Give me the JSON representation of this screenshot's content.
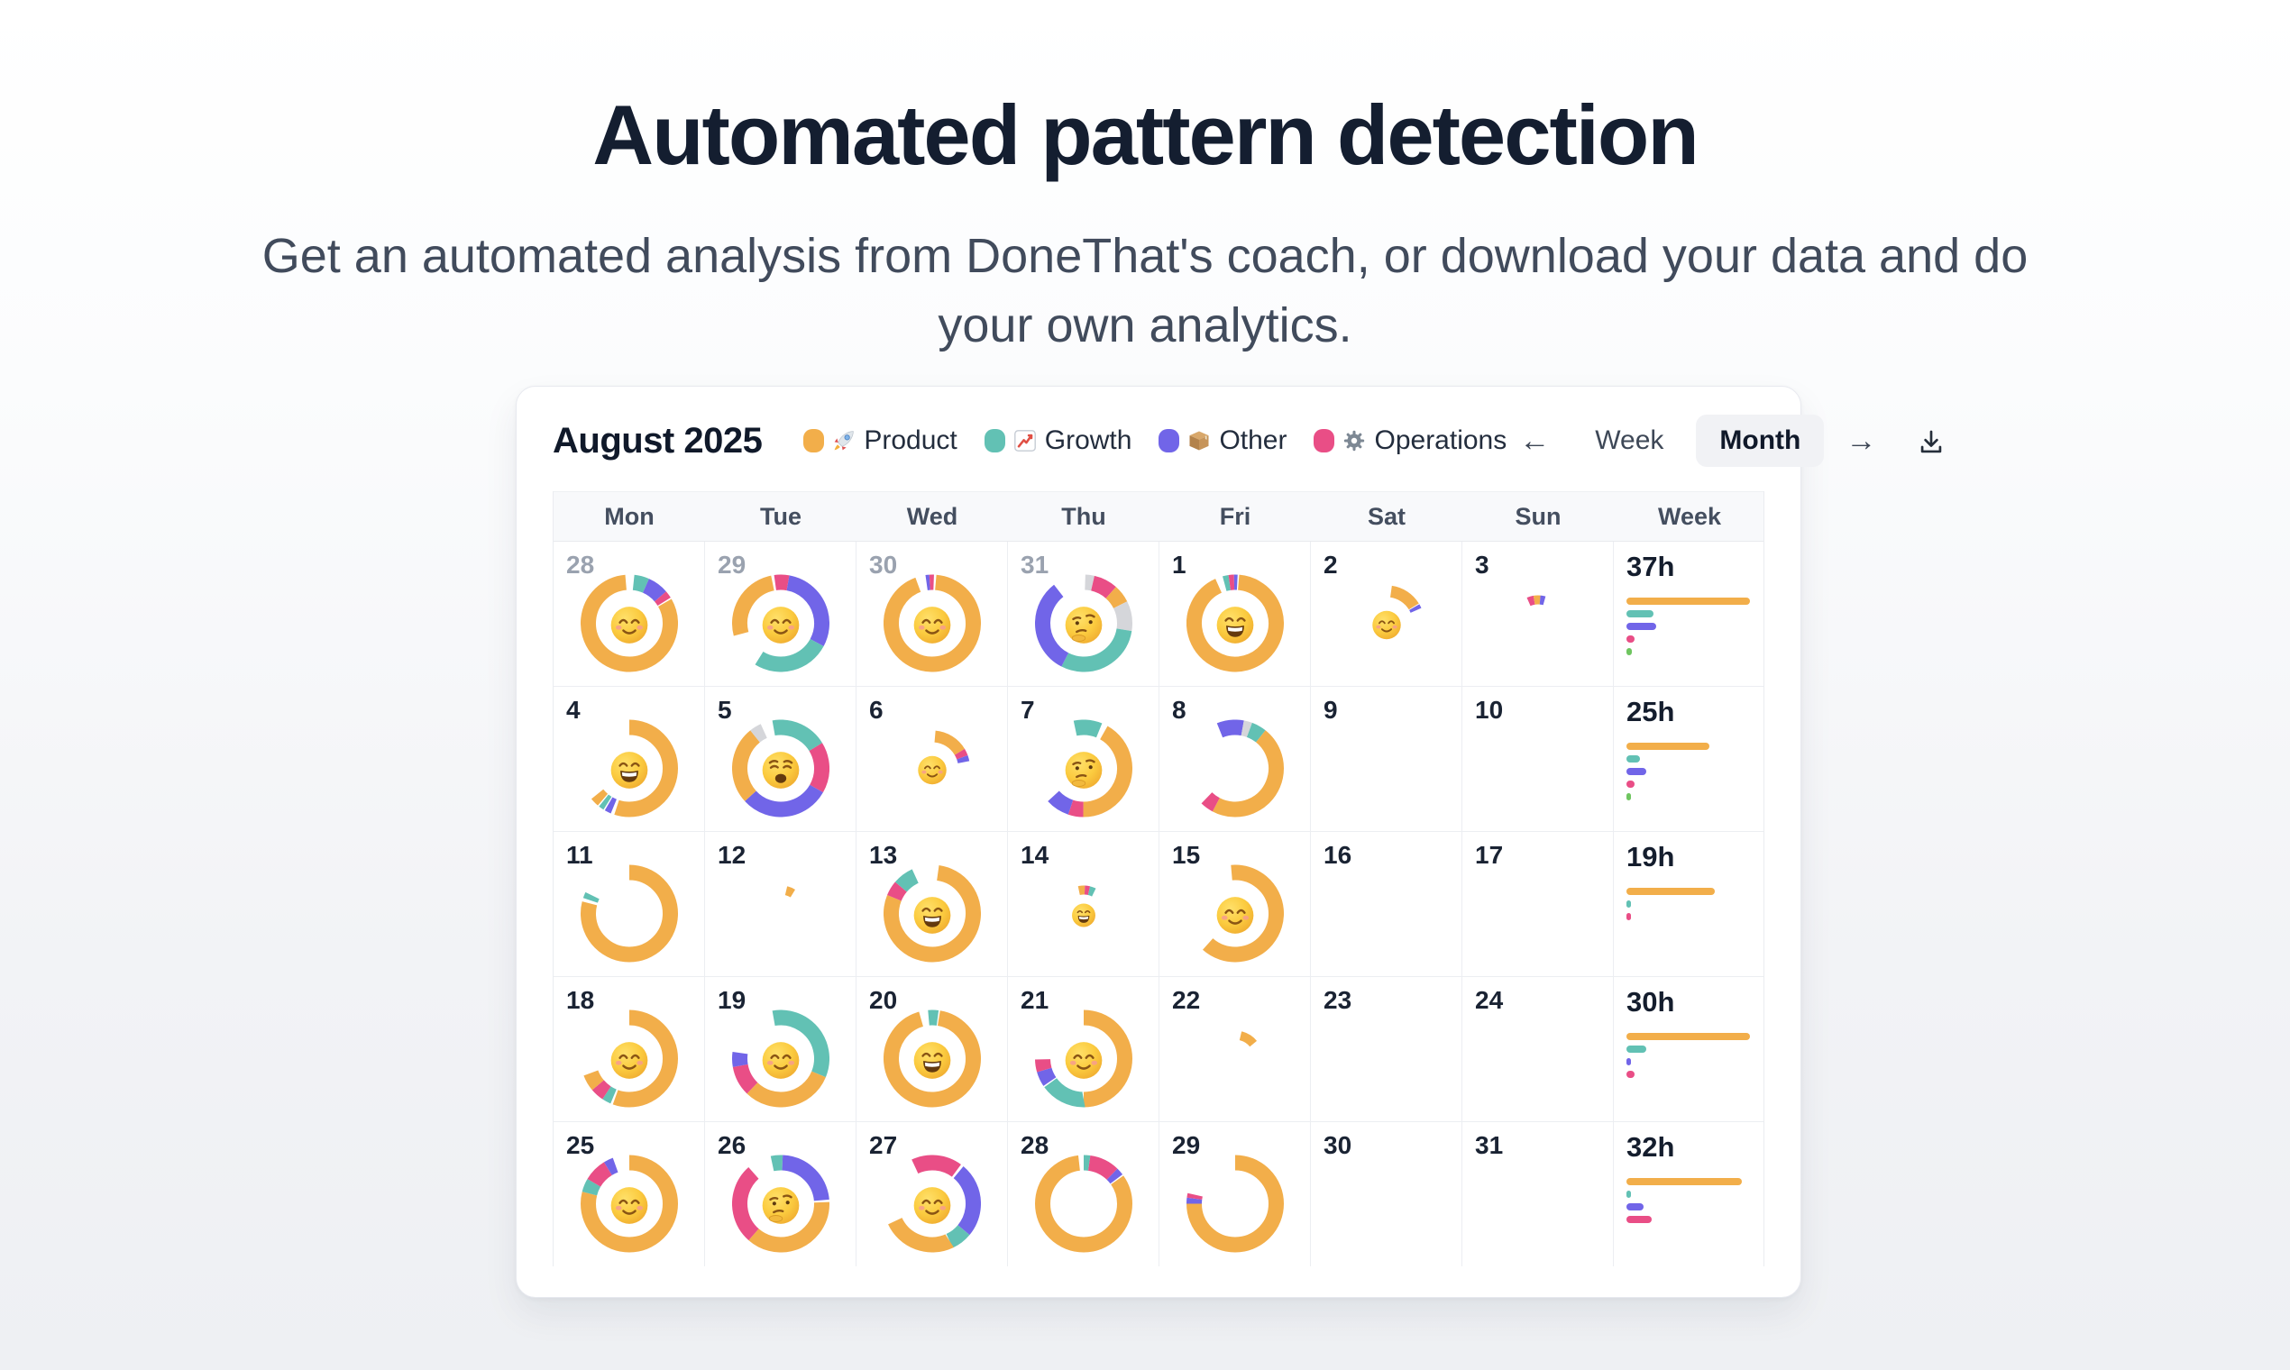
{
  "hero": {
    "title": "Automated pattern detection",
    "subtitle": "Get an automated analysis from DoneThat's coach, or download your data and do your own analytics."
  },
  "calendar": {
    "month_title": "August 2025",
    "legend": [
      {
        "label": "Product",
        "color": "#F2AE4A",
        "icon": "rocket-icon"
      },
      {
        "label": "Growth",
        "color": "#62C1B4",
        "icon": "chart-increasing-icon"
      },
      {
        "label": "Other",
        "color": "#7165E8",
        "icon": "package-icon"
      },
      {
        "label": "Operations",
        "color": "#E94E86",
        "icon": "gear-icon"
      }
    ],
    "controls": {
      "prev_symbol": "←",
      "next_symbol": "→",
      "week_label": "Week",
      "month_label": "Month",
      "active_view": "Month",
      "download_icon": "download-icon"
    },
    "day_headers": [
      "Mon",
      "Tue",
      "Wed",
      "Thu",
      "Fri",
      "Sat",
      "Sun",
      "Week"
    ],
    "colors": {
      "orange": "#F2AE4A",
      "teal": "#62C1B4",
      "purple": "#7165E8",
      "pink": "#E94E86",
      "gray": "#D5D6DA",
      "green": "#6FC560"
    },
    "weeks": [
      {
        "days": [
          {
            "n": "28",
            "dim": true,
            "face": "relaxed",
            "donut": {
              "start": 6,
              "size": "L",
              "segs": [
                [
                  "teal",
                  0.05
                ],
                [
                  "purple",
                  0.07
                ],
                [
                  "pink",
                  0.025
                ],
                [
                  "orange",
                  0.82,
                  0.005
                ]
              ]
            }
          },
          {
            "n": "29",
            "dim": true,
            "face": "relaxed",
            "donut": {
              "start": 255,
              "size": "L",
              "segs": [
                [
                  "orange",
                  0.26
                ],
                [
                  "pink",
                  0.05,
                  0.01
                ],
                [
                  "purple",
                  0.3
                ],
                [
                  "teal",
                  0.26
                ]
              ]
            }
          },
          {
            "n": "30",
            "dim": true,
            "face": "relaxed",
            "donut": {
              "start": 352,
              "size": "L",
              "segs": [
                [
                  "purple",
                  0.013
                ],
                [
                  "pink",
                  0.015
                ],
                [
                  "orange",
                  0.93,
                  0.008
                ]
              ]
            }
          },
          {
            "n": "31",
            "dim": true,
            "face": "thinking",
            "donut": {
              "start": 2,
              "size": "L",
              "segs": [
                [
                  "gray",
                  0.03
                ],
                [
                  "pink",
                  0.08
                ],
                [
                  "orange",
                  0.06
                ],
                [
                  "gray",
                  0.1
                ],
                [
                  "teal",
                  0.3
                ],
                [
                  "purple",
                  0.32
                ]
              ]
            }
          },
          {
            "n": "1",
            "face": "grin",
            "donut": {
              "start": 345,
              "size": "L",
              "segs": [
                [
                  "teal",
                  0.02
                ],
                [
                  "pink",
                  0.018
                ],
                [
                  "purple",
                  0.012
                ],
                [
                  "orange",
                  0.92,
                  0.005
                ]
              ]
            }
          },
          {
            "n": "2",
            "face": "relaxed",
            "donut": {
              "start": 8,
              "size": "M",
              "segs": [
                [
                  "orange",
                  0.14
                ],
                [
                  "purple",
                  0.018,
                  0.004
                ]
              ]
            }
          },
          {
            "n": "3",
            "donut": {
              "start": 338,
              "size": "S",
              "segs": [
                [
                  "pink",
                  0.035
                ],
                [
                  "orange",
                  0.04
                ],
                [
                  "purple",
                  0.03
                ]
              ]
            }
          }
        ],
        "summary": {
          "label": "37h",
          "bars": [
            [
              "orange",
              137
            ],
            [
              "teal",
              30
            ],
            [
              "purple",
              33
            ],
            [
              "pink",
              9
            ],
            [
              "green",
              6
            ]
          ]
        }
      },
      {
        "days": [
          {
            "n": "4",
            "face": "grin",
            "donut": {
              "start": 0,
              "size": "L",
              "segs": [
                [
                  "orange",
                  0.55
                ],
                [
                  "purple",
                  0.022,
                  0.012
                ],
                [
                  "teal",
                  0.018,
                  0.005
                ],
                [
                  "orange",
                  0.03,
                  0.005
                ]
              ]
            }
          },
          {
            "n": "5",
            "face": "weary",
            "donut": {
              "start": 350,
              "size": "L",
              "segs": [
                [
                  "teal",
                  0.19
                ],
                [
                  "pink",
                  0.17
                ],
                [
                  "purple",
                  0.3
                ],
                [
                  "orange",
                  0.26
                ],
                [
                  "gray",
                  0.04
                ]
              ]
            }
          },
          {
            "n": "6",
            "face": "relaxed",
            "donut": {
              "start": 5,
              "size": "M",
              "segs": [
                [
                  "orange",
                  0.15
                ],
                [
                  "pink",
                  0.03
                ],
                [
                  "purple",
                  0.025
                ]
              ]
            }
          },
          {
            "n": "7",
            "face": "thinking",
            "donut": {
              "start": 348,
              "size": "L",
              "segs": [
                [
                  "teal",
                  0.095
                ],
                [
                  "orange",
                  0.42,
                  0.02
                ],
                [
                  "pink",
                  0.05
                ],
                [
                  "purple",
                  0.08
                ]
              ]
            }
          },
          {
            "n": "8",
            "donut": {
              "start": 338,
              "size": "L",
              "segs": [
                [
                  "purple",
                  0.09
                ],
                [
                  "gray",
                  0.028
                ],
                [
                  "teal",
                  0.05
                ],
                [
                  "orange",
                  0.47
                ],
                [
                  "pink",
                  0.045
                ]
              ]
            }
          },
          {
            "n": "9"
          },
          {
            "n": "10"
          }
        ],
        "summary": {
          "label": "25h",
          "bars": [
            [
              "orange",
              92
            ],
            [
              "teal",
              15
            ],
            [
              "purple",
              22
            ],
            [
              "pink",
              9
            ],
            [
              "green",
              5
            ]
          ]
        }
      },
      {
        "days": [
          {
            "n": "11",
            "donut": {
              "start": 0,
              "size": "L",
              "segs": [
                [
                  "orange",
                  0.79
                ],
                [
                  "teal",
                  0.02,
                  0.012
                ]
              ]
            }
          },
          {
            "n": "12",
            "donut": {
              "start": 15,
              "size": "S",
              "segs": [
                [
                  "orange",
                  0.045
                ]
              ]
            }
          },
          {
            "n": "13",
            "face": "grin",
            "donut": {
              "start": 8,
              "size": "L",
              "segs": [
                [
                  "orange",
                  0.79
                ],
                [
                  "pink",
                  0.05
                ],
                [
                  "teal",
                  0.07
                ]
              ]
            }
          },
          {
            "n": "14",
            "face": "grin",
            "donut": {
              "start": 350,
              "size": "S",
              "segs": [
                [
                  "orange",
                  0.035
                ],
                [
                  "pink",
                  0.03
                ],
                [
                  "teal",
                  0.035
                ]
              ]
            }
          },
          {
            "n": "15",
            "face": "relaxed",
            "donut": {
              "start": 355,
              "size": "L",
              "segs": [
                [
                  "orange",
                  0.63
                ]
              ]
            }
          },
          {
            "n": "16"
          },
          {
            "n": "17"
          }
        ],
        "summary": {
          "label": "19h",
          "bars": [
            [
              "orange",
              98
            ],
            [
              "teal",
              5
            ],
            [
              "pink",
              5
            ]
          ]
        }
      },
      {
        "days": [
          {
            "n": "18",
            "face": "relaxed",
            "donut": {
              "start": 0,
              "size": "L",
              "segs": [
                [
                  "orange",
                  0.555
                ],
                [
                  "teal",
                  0.03,
                  0.008
                ],
                [
                  "pink",
                  0.045
                ],
                [
                  "orange",
                  0.055
                ]
              ]
            }
          },
          {
            "n": "19",
            "face": "relaxed",
            "donut": {
              "start": 350,
              "size": "L",
              "segs": [
                [
                  "teal",
                  0.34
                ],
                [
                  "orange",
                  0.31
                ],
                [
                  "pink",
                  0.1
                ],
                [
                  "purple",
                  0.05
                ]
              ]
            }
          },
          {
            "n": "20",
            "face": "grin",
            "donut": {
              "start": 355,
              "size": "L",
              "segs": [
                [
                  "teal",
                  0.035
                ],
                [
                  "orange",
                  0.93,
                  0.005
                ]
              ]
            }
          },
          {
            "n": "21",
            "face": "relaxed",
            "donut": {
              "start": 0,
              "size": "L",
              "segs": [
                [
                  "orange",
                  0.5
                ],
                [
                  "teal",
                  0.15
                ],
                [
                  "purple",
                  0.05,
                  0.005
                ],
                [
                  "pink",
                  0.042
                ]
              ]
            }
          },
          {
            "n": "22",
            "donut": {
              "start": 15,
              "size": "S",
              "segs": [
                [
                  "orange",
                  0.1
                ]
              ]
            }
          },
          {
            "n": "23"
          },
          {
            "n": "24"
          }
        ],
        "summary": {
          "label": "30h",
          "bars": [
            [
              "orange",
              137
            ],
            [
              "teal",
              22
            ],
            [
              "purple",
              5
            ],
            [
              "pink",
              9
            ]
          ]
        }
      },
      {
        "days": [
          {
            "n": "25",
            "face": "relaxed",
            "donut": {
              "start": 0,
              "size": "L",
              "segs": [
                [
                  "orange",
                  0.79
                ],
                [
                  "teal",
                  0.045
                ],
                [
                  "pink",
                  0.078
                ],
                [
                  "purple",
                  0.032
                ]
              ]
            }
          },
          {
            "n": "26",
            "face": "thinking",
            "donut": {
              "start": 348,
              "size": "L",
              "segs": [
                [
                  "teal",
                  0.04
                ],
                [
                  "purple",
                  0.23
                ],
                [
                  "orange",
                  0.37,
                  0.008
                ],
                [
                  "pink",
                  0.27
                ]
              ]
            }
          },
          {
            "n": "27",
            "face": "relaxed",
            "donut": {
              "start": 335,
              "size": "L",
              "segs": [
                [
                  "pink",
                  0.17
                ],
                [
                  "purple",
                  0.25,
                  0.01
                ],
                [
                  "teal",
                  0.07
                ],
                [
                  "orange",
                  0.25
                ]
              ]
            }
          },
          {
            "n": "28",
            "donut": {
              "start": 0,
              "size": "L",
              "segs": [
                [
                  "teal",
                  0.022
                ],
                [
                  "pink",
                  0.1
                ],
                [
                  "purple",
                  0.025
                ],
                [
                  "orange",
                  0.83,
                  0.005
                ]
              ]
            }
          },
          {
            "n": "29",
            "donut": {
              "start": 0,
              "size": "L",
              "segs": [
                [
                  "orange",
                  0.75
                ],
                [
                  "purple",
                  0.02
                ],
                [
                  "pink",
                  0.015
                ]
              ]
            }
          },
          {
            "n": "30"
          },
          {
            "n": "31"
          }
        ],
        "summary": {
          "label": "32h",
          "bars": [
            [
              "orange",
              128
            ],
            [
              "teal",
              5
            ],
            [
              "purple",
              19
            ],
            [
              "pink",
              28
            ]
          ]
        }
      }
    ]
  }
}
